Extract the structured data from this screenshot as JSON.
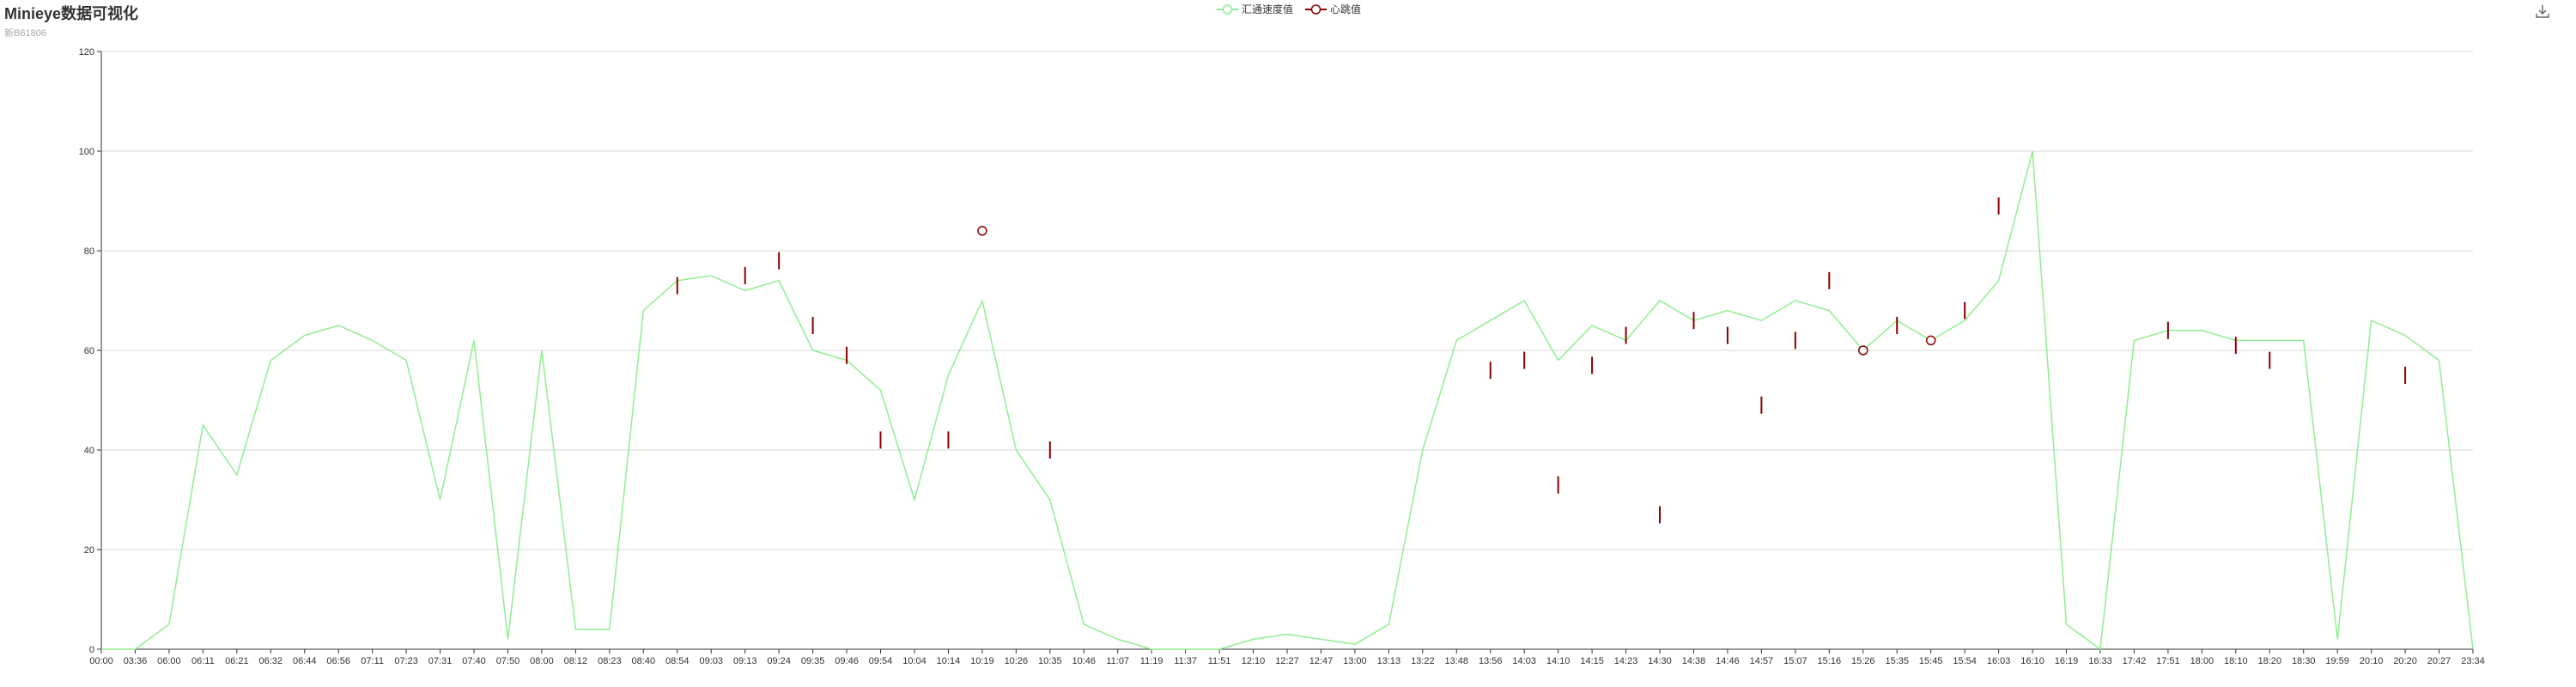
{
  "title": "Minieye数据可视化",
  "subtitle": "新B61806",
  "toolbox": {
    "icon": "download-icon"
  },
  "legend": [
    {
      "name": "汇通速度值",
      "color": "#90ee90",
      "icon": "line-with-hollow-circle"
    },
    {
      "name": "心跳值",
      "color": "#8b0000",
      "icon": "line-with-hollow-circle"
    }
  ],
  "chart_data": {
    "type": "line",
    "ylim": [
      0,
      120
    ],
    "yticks": [
      0,
      20,
      40,
      60,
      80,
      100,
      120
    ],
    "grid": true,
    "legend_position": "top-center",
    "x": [
      "00:00",
      "03:36",
      "06:00",
      "06:11",
      "06:21",
      "06:32",
      "06:44",
      "06:56",
      "07:11",
      "07:23",
      "07:31",
      "07:40",
      "07:50",
      "08:00",
      "08:12",
      "08:23",
      "08:40",
      "08:54",
      "09:03",
      "09:13",
      "09:24",
      "09:35",
      "09:46",
      "09:54",
      "10:04",
      "10:14",
      "10:19",
      "10:26",
      "10:35",
      "10:46",
      "11:07",
      "11:19",
      "11:37",
      "11:51",
      "12:10",
      "12:27",
      "12:47",
      "13:00",
      "13:13",
      "13:22",
      "13:48",
      "13:56",
      "14:03",
      "14:10",
      "14:15",
      "14:23",
      "14:30",
      "14:38",
      "14:46",
      "14:57",
      "15:07",
      "15:16",
      "15:26",
      "15:35",
      "15:45",
      "15:54",
      "16:03",
      "16:10",
      "16:19",
      "16:33",
      "17:42",
      "17:51",
      "18:00",
      "18:10",
      "18:20",
      "18:30",
      "19:59",
      "20:10",
      "20:20",
      "20:27",
      "23:34"
    ],
    "series": [
      {
        "name": "汇通速度值",
        "color": "#90ee90",
        "values": [
          0,
          0,
          5,
          45,
          35,
          58,
          63,
          65,
          62,
          58,
          30,
          62,
          2,
          60,
          4,
          4,
          68,
          74,
          75,
          72,
          74,
          60,
          58,
          52,
          30,
          55,
          70,
          40,
          30,
          5,
          2,
          0,
          0,
          0,
          2,
          3,
          2,
          1,
          5,
          40,
          62,
          66,
          70,
          58,
          65,
          62,
          70,
          66,
          68,
          66,
          70,
          68,
          60,
          66,
          62,
          66,
          74,
          100,
          5,
          0,
          62,
          64,
          64,
          62,
          62,
          62,
          2,
          66,
          63,
          58,
          0
        ]
      },
      {
        "name": "心跳值",
        "color": "#8b0000",
        "points": [
          {
            "x": "08:54",
            "y": 73
          },
          {
            "x": "09:13",
            "y": 75
          },
          {
            "x": "09:24",
            "y": 78
          },
          {
            "x": "09:35",
            "y": 65
          },
          {
            "x": "09:46",
            "y": 59
          },
          {
            "x": "09:54",
            "y": 42
          },
          {
            "x": "10:14",
            "y": 42
          },
          {
            "x": "10:19",
            "y": 84,
            "marker": true
          },
          {
            "x": "10:35",
            "y": 40
          },
          {
            "x": "13:56",
            "y": 56
          },
          {
            "x": "14:03",
            "y": 58
          },
          {
            "x": "14:10",
            "y": 33
          },
          {
            "x": "14:15",
            "y": 57
          },
          {
            "x": "14:23",
            "y": 63
          },
          {
            "x": "14:30",
            "y": 27
          },
          {
            "x": "14:38",
            "y": 66
          },
          {
            "x": "14:46",
            "y": 63
          },
          {
            "x": "14:57",
            "y": 49
          },
          {
            "x": "15:07",
            "y": 62
          },
          {
            "x": "15:16",
            "y": 74
          },
          {
            "x": "15:26",
            "y": 60,
            "marker": true
          },
          {
            "x": "15:35",
            "y": 65
          },
          {
            "x": "15:45",
            "y": 62,
            "marker": true
          },
          {
            "x": "15:54",
            "y": 68
          },
          {
            "x": "16:03",
            "y": 89
          },
          {
            "x": "17:51",
            "y": 64
          },
          {
            "x": "18:10",
            "y": 61
          },
          {
            "x": "18:20",
            "y": 58
          },
          {
            "x": "20:20",
            "y": 55
          }
        ]
      }
    ]
  }
}
